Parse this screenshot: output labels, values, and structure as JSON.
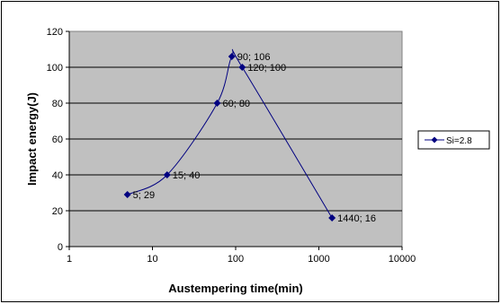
{
  "chart_data": {
    "type": "scatter",
    "xlabel": "Austempering time(min)",
    "ylabel": "Impact energy(J)",
    "x_scale": "log",
    "xlim": [
      1,
      10000
    ],
    "ylim": [
      0,
      120
    ],
    "x_ticks": [
      1,
      10,
      100,
      1000,
      10000
    ],
    "y_ticks": [
      0,
      20,
      40,
      60,
      80,
      100,
      120
    ],
    "x_tick_labels": [
      "1",
      "10",
      "100",
      "1000",
      "10000"
    ],
    "y_tick_labels": [
      "0",
      "20",
      "40",
      "60",
      "80",
      "100",
      "120"
    ],
    "grid": "horizontal",
    "plot_background": "#c0c0c0",
    "legend_position": "right",
    "series": [
      {
        "name": "Si=2.8",
        "color": "#000080",
        "marker": "diamond",
        "line": "smooth",
        "points": [
          {
            "x": 5,
            "y": 29,
            "label": "5; 29"
          },
          {
            "x": 15,
            "y": 40,
            "label": "15; 40"
          },
          {
            "x": 60,
            "y": 80,
            "label": "60; 80"
          },
          {
            "x": 90,
            "y": 106,
            "label": "90; 106"
          },
          {
            "x": 120,
            "y": 100,
            "label": "120; 100"
          },
          {
            "x": 1440,
            "y": 16,
            "label": "1440; 16"
          }
        ]
      }
    ]
  }
}
